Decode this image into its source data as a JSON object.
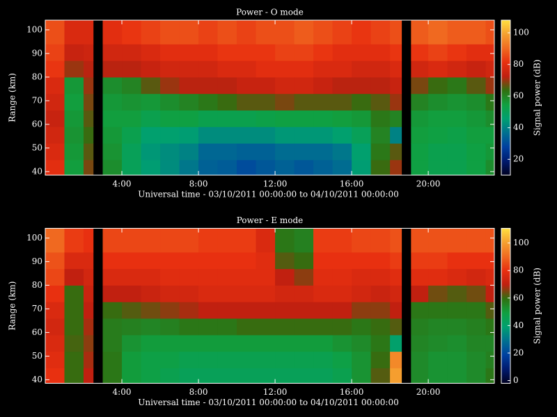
{
  "chart_data": [
    {
      "type": "heatmap",
      "title": "Power - O mode",
      "xlabel": "Universal time - 03/10/2011 00:00:00 to 04/10/2011 00:00:00",
      "ylabel": "Range (km)",
      "colorbar_label": "Signal power (dB)",
      "xlim": [
        0,
        23.45
      ],
      "ylim": [
        38.5,
        104.1
      ],
      "clim": [
        10,
        108
      ],
      "xticks": [
        {
          "value": 4,
          "label": "4:00"
        },
        {
          "value": 8,
          "label": "8:00"
        },
        {
          "value": 12,
          "label": "12:00"
        },
        {
          "value": 16,
          "label": "16:00"
        },
        {
          "value": 20,
          "label": "20:00"
        }
      ],
      "yticks": [
        40,
        50,
        60,
        70,
        80,
        90,
        100
      ],
      "cticks": [
        20,
        40,
        60,
        80,
        100
      ],
      "colorscale": [
        "#000020",
        "#001a6e",
        "#0040a0",
        "#007090",
        "#00a070",
        "#10a040",
        "#307010",
        "#c02010",
        "#e83010",
        "#f06a20",
        "#f5a030",
        "#ffe040"
      ],
      "xbins": [
        0,
        1,
        2,
        2.5,
        3,
        4,
        5,
        6,
        7,
        8,
        9,
        10,
        11,
        12,
        13,
        14,
        15,
        16,
        17,
        18,
        18.6,
        19.1,
        20,
        21,
        22,
        23,
        23.45
      ],
      "ybins": [
        38.5,
        45,
        52,
        59,
        66,
        73,
        80,
        87,
        94,
        104.1
      ],
      "values": [
        [
          80,
          78,
          76,
          74,
          76,
          78,
          82,
          84,
          86
        ],
        [
          55,
          56,
          57,
          56,
          55,
          56,
          70,
          74,
          78
        ],
        [
          68,
          66,
          64,
          66,
          68,
          70,
          72,
          75,
          78
        ],
        [
          null,
          null,
          null,
          null,
          null,
          null,
          null,
          null,
          null
        ],
        [
          58,
          57,
          56,
          55,
          56,
          58,
          72,
          76,
          80
        ],
        [
          50,
          50,
          52,
          55,
          57,
          60,
          72,
          76,
          82
        ],
        [
          45,
          44,
          46,
          52,
          56,
          66,
          74,
          78,
          84
        ],
        [
          42,
          42,
          46,
          54,
          58,
          70,
          76,
          80,
          86
        ],
        [
          38,
          40,
          45,
          54,
          60,
          72,
          76,
          80,
          86
        ],
        [
          34,
          35,
          42,
          52,
          62,
          72,
          76,
          80,
          84
        ],
        [
          33,
          35,
          42,
          52,
          64,
          72,
          78,
          82,
          86
        ],
        [
          30,
          34,
          42,
          52,
          66,
          74,
          78,
          82,
          84
        ],
        [
          32,
          34,
          42,
          53,
          66,
          74,
          80,
          82,
          86
        ],
        [
          34,
          36,
          44,
          54,
          68,
          76,
          80,
          84,
          86
        ],
        [
          32,
          36,
          44,
          54,
          66,
          76,
          80,
          84,
          88
        ],
        [
          34,
          36,
          44,
          54,
          66,
          74,
          78,
          82,
          86
        ],
        [
          36,
          38,
          46,
          55,
          66,
          72,
          78,
          80,
          84
        ],
        [
          45,
          46,
          50,
          56,
          64,
          72,
          76,
          80,
          82
        ],
        [
          64,
          62,
          60,
          62,
          66,
          72,
          76,
          80,
          84
        ],
        [
          70,
          66,
          40,
          60,
          70,
          74,
          78,
          82,
          86
        ],
        [
          null,
          null,
          null,
          null,
          null,
          null,
          null,
          null,
          null
        ],
        [
          54,
          54,
          55,
          56,
          60,
          68,
          76,
          82,
          88
        ],
        [
          52,
          52,
          54,
          55,
          58,
          64,
          78,
          84,
          90
        ],
        [
          52,
          52,
          53,
          55,
          57,
          62,
          76,
          82,
          88
        ],
        [
          54,
          54,
          55,
          56,
          58,
          66,
          74,
          80,
          88
        ],
        [
          58,
          56,
          55,
          58,
          62,
          70,
          76,
          80,
          86
        ]
      ]
    },
    {
      "type": "heatmap",
      "title": "Power - E mode",
      "xlabel": "Universal time - 03/10/2011 00:00:00 to 04/10/2011 00:00:00",
      "ylabel": "Range (km)",
      "colorbar_label": "Signal power (dB)",
      "xlim": [
        0,
        23.45
      ],
      "ylim": [
        38.5,
        104.1
      ],
      "clim": [
        -2,
        110.7
      ],
      "xticks": [
        {
          "value": 4,
          "label": "4:00"
        },
        {
          "value": 8,
          "label": "8:00"
        },
        {
          "value": 12,
          "label": "12:00"
        },
        {
          "value": 16,
          "label": "16:00"
        },
        {
          "value": 20,
          "label": "20:00"
        }
      ],
      "yticks": [
        40,
        50,
        60,
        70,
        80,
        90,
        100
      ],
      "cticks": [
        0,
        20,
        40,
        60,
        80,
        100
      ],
      "colorscale": [
        "#000020",
        "#001a6e",
        "#0040a0",
        "#007090",
        "#00a070",
        "#10a040",
        "#307010",
        "#c02010",
        "#e83010",
        "#f06a20",
        "#f5a030",
        "#ffe040"
      ],
      "xbins": [
        0,
        1,
        2,
        2.5,
        3,
        4,
        5,
        6,
        7,
        8,
        9,
        10,
        11,
        12,
        13,
        14,
        15,
        16,
        17,
        18,
        18.6,
        19.1,
        20,
        21,
        22,
        23,
        23.45
      ],
      "ybins": [
        38.5,
        45,
        52,
        59,
        66,
        73,
        80,
        87,
        94,
        104.1
      ],
      "values": [
        [
          80,
          78,
          76,
          74,
          76,
          80,
          84,
          86,
          90
        ],
        [
          60,
          60,
          61,
          60,
          60,
          60,
          70,
          76,
          82
        ],
        [
          70,
          68,
          66,
          68,
          70,
          72,
          74,
          76,
          80
        ],
        [
          null,
          null,
          null,
          null,
          null,
          null,
          null,
          null,
          null
        ],
        [
          58,
          58,
          57,
          57,
          60,
          70,
          76,
          80,
          84
        ],
        [
          50,
          50,
          52,
          56,
          62,
          70,
          76,
          80,
          84
        ],
        [
          48,
          48,
          50,
          55,
          64,
          72,
          76,
          80,
          84
        ],
        [
          46,
          48,
          50,
          56,
          66,
          74,
          78,
          80,
          84
        ],
        [
          44,
          46,
          50,
          58,
          68,
          74,
          78,
          80,
          84
        ],
        [
          44,
          46,
          50,
          58,
          70,
          76,
          78,
          80,
          82
        ],
        [
          44,
          46,
          50,
          58,
          70,
          76,
          78,
          80,
          82
        ],
        [
          44,
          46,
          50,
          60,
          70,
          76,
          78,
          80,
          82
        ],
        [
          44,
          46,
          50,
          60,
          70,
          76,
          78,
          78,
          76
        ],
        [
          44,
          46,
          50,
          60,
          70,
          74,
          70,
          62,
          58
        ],
        [
          44,
          46,
          50,
          60,
          70,
          74,
          66,
          60,
          56
        ],
        [
          44,
          46,
          50,
          60,
          70,
          76,
          78,
          80,
          82
        ],
        [
          46,
          48,
          52,
          60,
          70,
          76,
          78,
          80,
          82
        ],
        [
          52,
          52,
          54,
          58,
          66,
          74,
          76,
          80,
          84
        ],
        [
          62,
          60,
          58,
          60,
          66,
          72,
          76,
          80,
          84
        ],
        [
          100,
          96,
          40,
          62,
          70,
          74,
          78,
          82,
          86
        ],
        [
          null,
          null,
          null,
          null,
          null,
          null,
          null,
          null,
          null
        ],
        [
          54,
          54,
          55,
          56,
          58,
          70,
          78,
          82,
          86
        ],
        [
          52,
          52,
          54,
          55,
          58,
          64,
          78,
          82,
          86
        ],
        [
          52,
          52,
          53,
          55,
          58,
          62,
          76,
          80,
          86
        ],
        [
          54,
          54,
          55,
          56,
          58,
          64,
          74,
          80,
          86
        ],
        [
          58,
          56,
          55,
          58,
          62,
          70,
          76,
          80,
          86
        ]
      ]
    }
  ]
}
